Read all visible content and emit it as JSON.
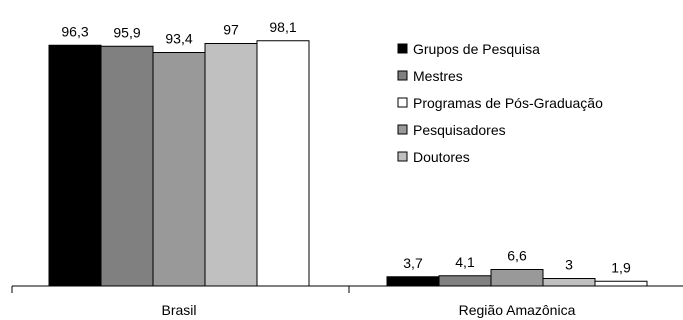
{
  "chart_data": {
    "type": "bar",
    "categories": [
      "Brasil",
      "Região Amazônica"
    ],
    "series": [
      {
        "name": "Grupos de Pesquisa",
        "values": [
          96.3,
          3.7
        ],
        "labels": [
          "96,3",
          "3,7"
        ],
        "color": "#000000"
      },
      {
        "name": "Mestres",
        "values": [
          95.9,
          4.1
        ],
        "labels": [
          "95,9",
          "4,1"
        ],
        "color": "#808080"
      },
      {
        "name": "Pesquisadores",
        "values": [
          93.4,
          6.6
        ],
        "labels": [
          "93,4",
          "6,6"
        ],
        "color": "#999999"
      },
      {
        "name": "Doutores",
        "values": [
          97,
          3
        ],
        "labels": [
          "97",
          "3"
        ],
        "color": "#c0c0c0"
      },
      {
        "name": "Programas de Pós-Graduação",
        "values": [
          98.1,
          1.9
        ],
        "labels": [
          "98,1",
          "1,9"
        ],
        "color": "#ffffff"
      }
    ],
    "legend_order": [
      "Grupos de Pesquisa",
      "Mestres",
      "Programas de Pós-Graduação",
      "Pesquisadores",
      "Doutores"
    ],
    "ylim": [
      0,
      100
    ],
    "grid": false,
    "legend_position": "right"
  }
}
